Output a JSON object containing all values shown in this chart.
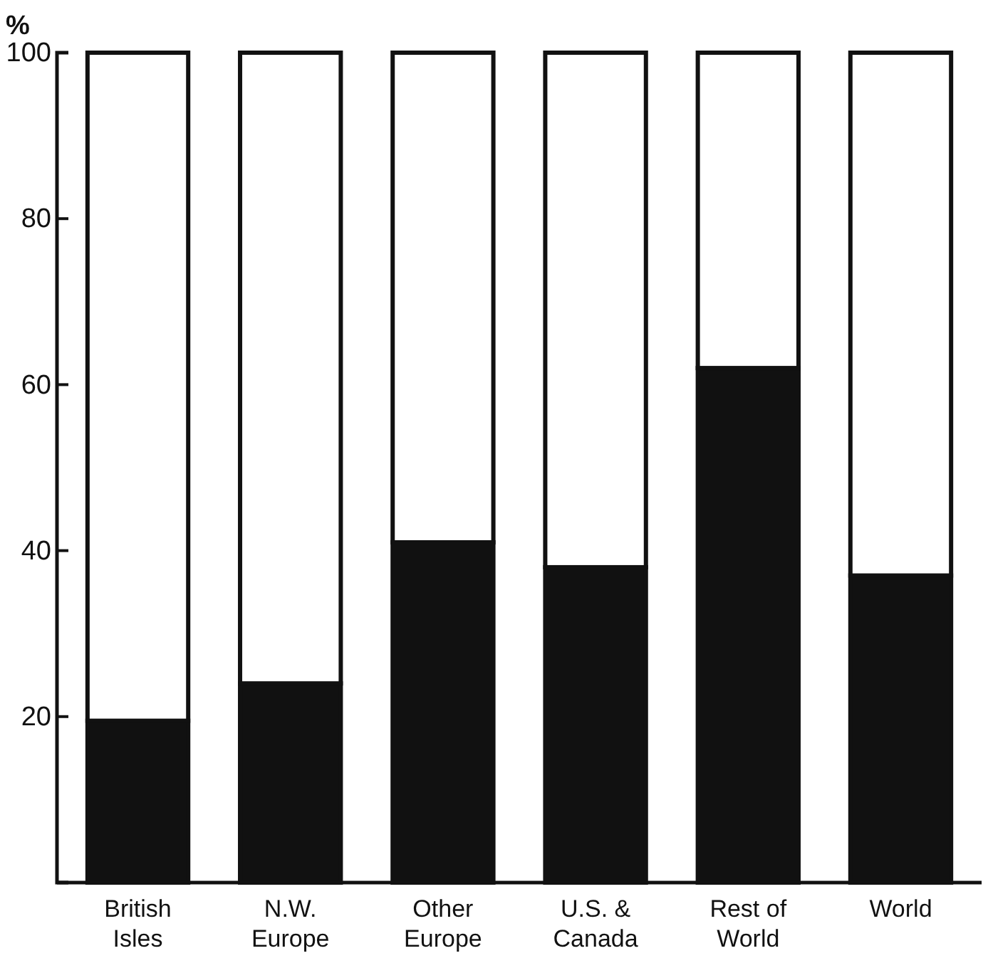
{
  "chart_data": {
    "type": "bar",
    "stacked": true,
    "ylabel": "%",
    "categories": [
      "British Isles",
      "N.W. Europe",
      "Other Europe",
      "U.S. & Canada",
      "Rest of World",
      "World"
    ],
    "series": [
      {
        "color": "#111111",
        "values": [
          19.5,
          24,
          41,
          38,
          62,
          37
        ]
      },
      {
        "color": "#ffffff",
        "values": [
          80.5,
          76,
          59,
          62,
          38,
          63
        ]
      }
    ],
    "ylim": [
      0,
      100
    ],
    "yticks": [
      20,
      40,
      60,
      80,
      100
    ]
  }
}
